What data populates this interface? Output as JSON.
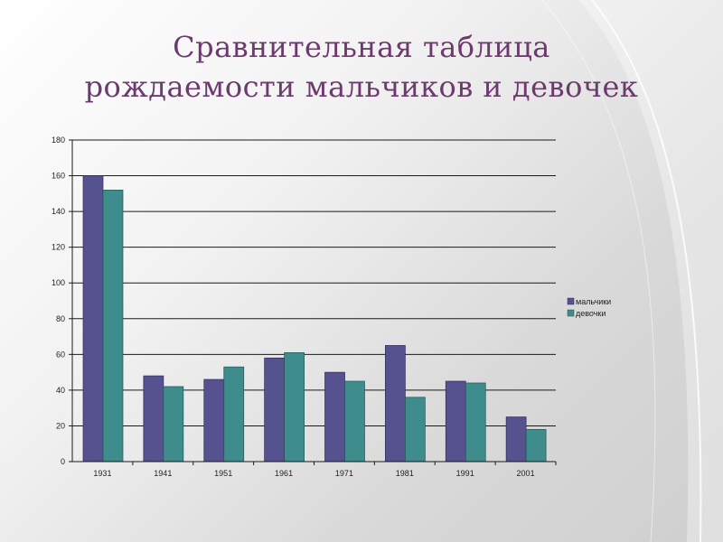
{
  "slide": {
    "title_line1": "Сравнительная таблица",
    "title_line2": "рождаемости мальчиков и девочек"
  },
  "colors": {
    "title": "#6d3a6e",
    "boys": "#55528f",
    "girls": "#3f8c8c"
  },
  "chart_data": {
    "type": "bar",
    "categories": [
      "1931",
      "1941",
      "1951",
      "1961",
      "1971",
      "1981",
      "1991",
      "2001"
    ],
    "series": [
      {
        "name": "мальчики",
        "values": [
          160,
          48,
          46,
          58,
          50,
          65,
          45,
          25
        ]
      },
      {
        "name": "девочки",
        "values": [
          152,
          42,
          53,
          61,
          45,
          36,
          44,
          18
        ]
      }
    ],
    "yticks": [
      "0",
      "20",
      "40",
      "60",
      "80",
      "100",
      "120",
      "140",
      "160",
      "180"
    ],
    "ylim": [
      0,
      180
    ],
    "grid": true,
    "legend": "right"
  }
}
